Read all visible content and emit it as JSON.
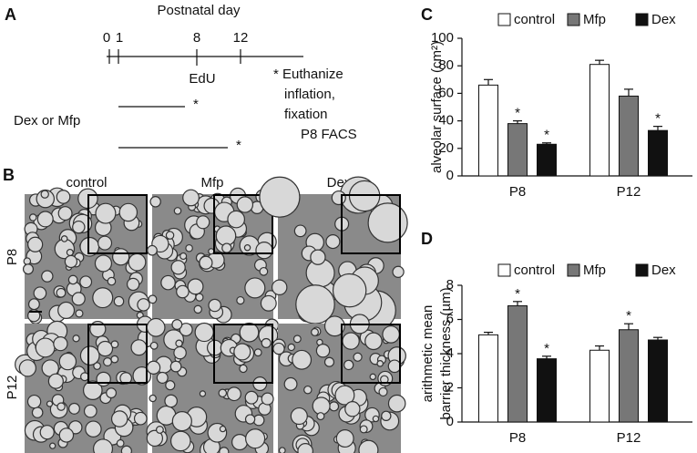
{
  "panels": {
    "A": {
      "label": "A",
      "title": "Postnatal day",
      "days": [
        "0",
        "1",
        "8",
        "12"
      ],
      "edu": "EdU",
      "treatment": "Dex or Mfp",
      "marks": [
        "*",
        "*"
      ],
      "note": [
        "* Euthanize",
        "inflation,",
        "fixation",
        "P8 FACS"
      ]
    },
    "B": {
      "label": "B",
      "columns": [
        "control",
        "Mfp",
        "Dex"
      ],
      "rows": [
        "P8",
        "P12"
      ]
    }
  },
  "chart_data": [
    {
      "type": "bar",
      "panel": "C",
      "ylabel": "alveolar surface (cm²)",
      "categories": [
        "P8",
        "P12"
      ],
      "ylim": [
        0,
        100
      ],
      "yticks": [
        0,
        20,
        40,
        60,
        80,
        100
      ],
      "series": [
        {
          "name": "control",
          "color": "#ffffff",
          "values": [
            66,
            81
          ],
          "errors": [
            4,
            3
          ],
          "annotations": [
            null,
            null
          ]
        },
        {
          "name": "Mfp",
          "color": "#777777",
          "values": [
            38,
            58
          ],
          "errors": [
            2,
            5
          ],
          "annotations": [
            "*",
            null
          ]
        },
        {
          "name": "Dex",
          "color": "#111111",
          "values": [
            23,
            33
          ],
          "errors": [
            1,
            3
          ],
          "annotations": [
            "*",
            "*"
          ]
        }
      ]
    },
    {
      "type": "bar",
      "panel": "D",
      "ylabel": [
        "arithmetic mean",
        "barrier thickness (µm)"
      ],
      "categories": [
        "P8",
        "P12"
      ],
      "ylim": [
        0,
        8
      ],
      "yticks": [
        0,
        2,
        4,
        6,
        8
      ],
      "series": [
        {
          "name": "control",
          "color": "#ffffff",
          "values": [
            5.1,
            4.2
          ],
          "errors": [
            0.15,
            0.25
          ],
          "annotations": [
            null,
            null
          ]
        },
        {
          "name": "Mfp",
          "color": "#777777",
          "values": [
            6.8,
            5.4
          ],
          "errors": [
            0.25,
            0.35
          ],
          "annotations": [
            "*",
            "*"
          ]
        },
        {
          "name": "Dex",
          "color": "#111111",
          "values": [
            3.7,
            4.8
          ],
          "errors": [
            0.15,
            0.15
          ],
          "annotations": [
            "*",
            null
          ]
        }
      ]
    }
  ]
}
